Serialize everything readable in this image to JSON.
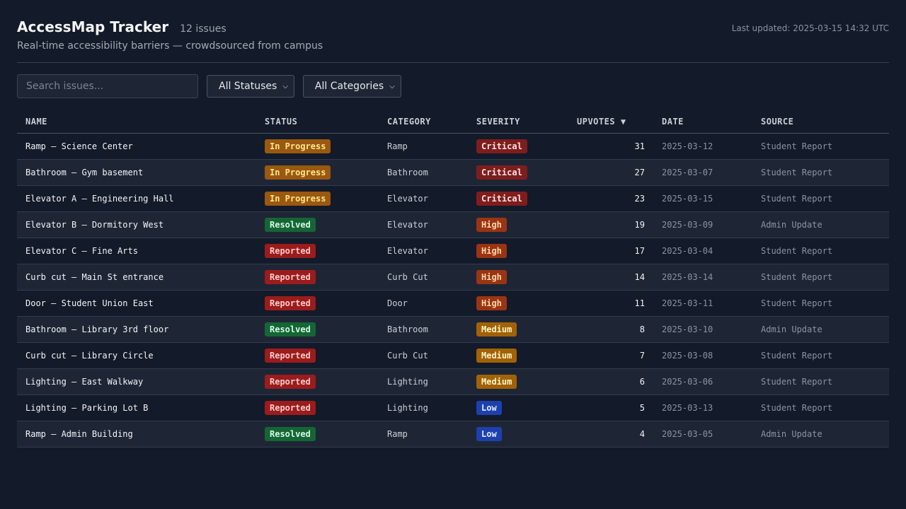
{
  "header": {
    "title": "AccessMap Tracker",
    "issue_count": "12 issues",
    "last_updated": "Last updated: 2025-03-15 14:32 UTC",
    "subtitle": "Real-time accessibility barriers — crowdsourced from campus"
  },
  "controls": {
    "search_placeholder": "Search issues...",
    "status_filter": "All Statuses",
    "category_filter": "All Categories"
  },
  "table": {
    "headers": {
      "name": "NAME",
      "status": "STATUS",
      "category": "CATEGORY",
      "severity": "SEVERITY",
      "upvotes": "UPVOTES",
      "upvotes_sort": "▼",
      "date": "DATE",
      "source": "SOURCE"
    },
    "rows": [
      {
        "name": "Ramp – Science Center",
        "status": "In Progress",
        "category": "Ramp",
        "severity": "Critical",
        "upvotes": "31",
        "date": "2025-03-12",
        "source": "Student Report"
      },
      {
        "name": "Bathroom – Gym basement",
        "status": "In Progress",
        "category": "Bathroom",
        "severity": "Critical",
        "upvotes": "27",
        "date": "2025-03-07",
        "source": "Student Report"
      },
      {
        "name": "Elevator A – Engineering Hall",
        "status": "In Progress",
        "category": "Elevator",
        "severity": "Critical",
        "upvotes": "23",
        "date": "2025-03-15",
        "source": "Student Report"
      },
      {
        "name": "Elevator B – Dormitory West",
        "status": "Resolved",
        "category": "Elevator",
        "severity": "High",
        "upvotes": "19",
        "date": "2025-03-09",
        "source": "Admin Update"
      },
      {
        "name": "Elevator C – Fine Arts",
        "status": "Reported",
        "category": "Elevator",
        "severity": "High",
        "upvotes": "17",
        "date": "2025-03-04",
        "source": "Student Report"
      },
      {
        "name": "Curb cut – Main St entrance",
        "status": "Reported",
        "category": "Curb Cut",
        "severity": "High",
        "upvotes": "14",
        "date": "2025-03-14",
        "source": "Student Report"
      },
      {
        "name": "Door – Student Union East",
        "status": "Reported",
        "category": "Door",
        "severity": "High",
        "upvotes": "11",
        "date": "2025-03-11",
        "source": "Student Report"
      },
      {
        "name": "Bathroom – Library 3rd floor",
        "status": "Resolved",
        "category": "Bathroom",
        "severity": "Medium",
        "upvotes": "8",
        "date": "2025-03-10",
        "source": "Admin Update"
      },
      {
        "name": "Curb cut – Library Circle",
        "status": "Reported",
        "category": "Curb Cut",
        "severity": "Medium",
        "upvotes": "7",
        "date": "2025-03-08",
        "source": "Student Report"
      },
      {
        "name": "Lighting – East Walkway",
        "status": "Reported",
        "category": "Lighting",
        "severity": "Medium",
        "upvotes": "6",
        "date": "2025-03-06",
        "source": "Student Report"
      },
      {
        "name": "Lighting – Parking Lot B",
        "status": "Reported",
        "category": "Lighting",
        "severity": "Low",
        "upvotes": "5",
        "date": "2025-03-13",
        "source": "Student Report"
      },
      {
        "name": "Ramp – Admin Building",
        "status": "Resolved",
        "category": "Ramp",
        "severity": "Low",
        "upvotes": "4",
        "date": "2025-03-05",
        "source": "Admin Update"
      }
    ]
  },
  "colors": {
    "background": "#131a29",
    "status_in_progress": "#9a5810",
    "status_resolved": "#166534",
    "status_reported": "#9a1c1c",
    "severity_critical": "#7f1d1d",
    "severity_high": "#9a3412",
    "severity_medium": "#a16207",
    "severity_low": "#1e40af"
  }
}
